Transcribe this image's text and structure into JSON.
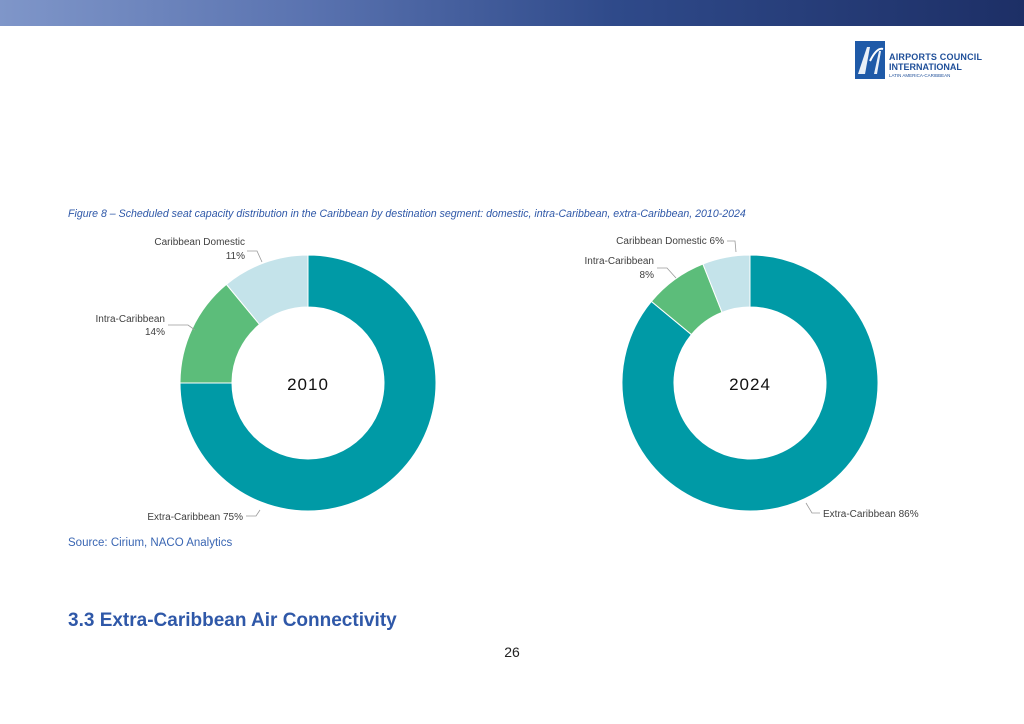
{
  "header": {
    "logo_mark": "ACI",
    "logo_line1": "AIRPORTS COUNCIL",
    "logo_line2": "INTERNATIONAL",
    "logo_line3": "LATIN AMERICA-CARIBBEAN"
  },
  "figure": {
    "caption": "Figure 8 – Scheduled seat capacity distribution in the Caribbean by destination segment: domestic, intra-Caribbean, extra-Caribbean, 2010-2024",
    "source": "Source: Cirium, NACO Analytics"
  },
  "section": {
    "heading": "3.3 Extra-Caribbean Air Connectivity"
  },
  "page": {
    "number": "26"
  },
  "chart_data": [
    {
      "type": "pie",
      "center_label": "2010",
      "categories": [
        "Extra-Caribbean",
        "Intra-Caribbean",
        "Caribbean Domestic"
      ],
      "values": [
        75,
        14,
        11
      ],
      "unit": "%",
      "colors": [
        "#009aa6",
        "#5cbd7a",
        "#c4e3ea"
      ],
      "labels": [
        "Extra-Caribbean 75%",
        "Intra-Caribbean\n14%",
        "Caribbean Domestic\n11%"
      ]
    },
    {
      "type": "pie",
      "center_label": "2024",
      "categories": [
        "Extra-Caribbean",
        "Intra-Caribbean",
        "Caribbean Domestic"
      ],
      "values": [
        86,
        8,
        6
      ],
      "unit": "%",
      "colors": [
        "#009aa6",
        "#5cbd7a",
        "#c4e3ea"
      ],
      "labels": [
        "Extra-Caribbean 86%",
        "Intra-Caribbean\n8%",
        "Caribbean Domestic 6%"
      ]
    }
  ]
}
